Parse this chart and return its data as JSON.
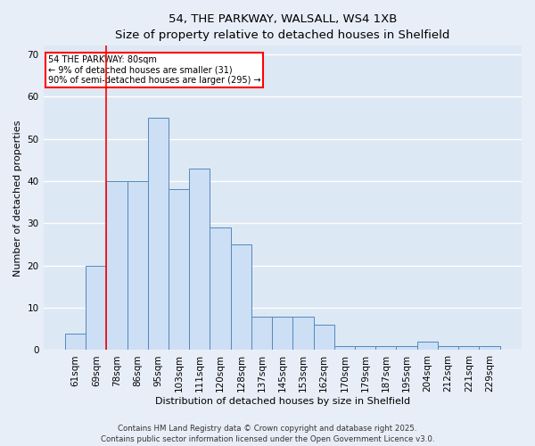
{
  "title1": "54, THE PARKWAY, WALSALL, WS4 1XB",
  "title2": "Size of property relative to detached houses in Shelfield",
  "xlabel": "Distribution of detached houses by size in Shelfield",
  "ylabel": "Number of detached properties",
  "categories": [
    "61sqm",
    "69sqm",
    "78sqm",
    "86sqm",
    "95sqm",
    "103sqm",
    "111sqm",
    "120sqm",
    "128sqm",
    "137sqm",
    "145sqm",
    "153sqm",
    "162sqm",
    "170sqm",
    "179sqm",
    "187sqm",
    "195sqm",
    "204sqm",
    "212sqm",
    "221sqm",
    "229sqm"
  ],
  "values": [
    4,
    20,
    40,
    40,
    55,
    38,
    43,
    29,
    25,
    8,
    8,
    8,
    6,
    1,
    1,
    1,
    1,
    2,
    1,
    1,
    1
  ],
  "bar_color": "#ccdff5",
  "bar_edge_color": "#5588bb",
  "background_color": "#dde8f5",
  "grid_color": "#ffffff",
  "annotation_title": "54 THE PARKWAY: 80sqm",
  "annotation_line1": "← 9% of detached houses are smaller (31)",
  "annotation_line2": "90% of semi-detached houses are larger (295) →",
  "ylim": [
    0,
    72
  ],
  "yticks": [
    0,
    10,
    20,
    30,
    40,
    50,
    60,
    70
  ],
  "redline_index": 1.5,
  "footer1": "Contains HM Land Registry data © Crown copyright and database right 2025.",
  "footer2": "Contains public sector information licensed under the Open Government Licence v3.0."
}
